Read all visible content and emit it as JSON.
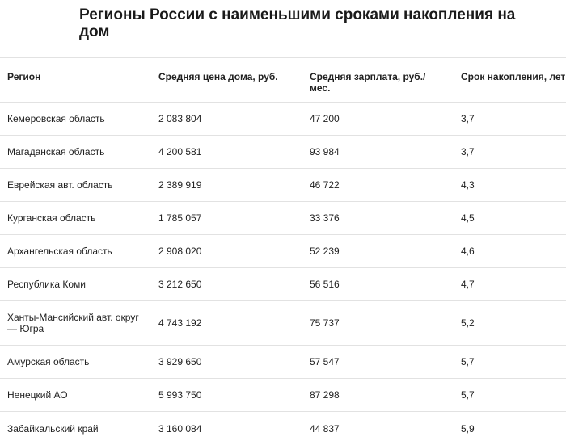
{
  "title": "Регионы России с наименьшими сроками накопления на дом",
  "table": {
    "headers": [
      "Регион",
      "Средняя цена дома, руб.",
      "Средняя зарплата, руб./ мес.",
      "Срок накопления, лет"
    ],
    "rows": [
      {
        "region": "Кемеровская область",
        "price": "2 083 804",
        "salary": "47 200",
        "years": "3,7"
      },
      {
        "region": "Магаданская область",
        "price": "4 200 581",
        "salary": "93 984",
        "years": "3,7"
      },
      {
        "region": "Еврейская авт. область",
        "price": "2 389 919",
        "salary": "46 722",
        "years": "4,3"
      },
      {
        "region": "Курганская область",
        "price": "1 785 057",
        "salary": "33 376",
        "years": "4,5"
      },
      {
        "region": "Архангельская область",
        "price": "2 908 020",
        "salary": "52 239",
        "years": "4,6"
      },
      {
        "region": "Республика Коми",
        "price": "3 212 650",
        "salary": "56 516",
        "years": "4,7"
      },
      {
        "region": "Ханты-Мансийский авт. округ — Югра",
        "price": "4 743 192",
        "salary": "75 737",
        "years": "5,2"
      },
      {
        "region": "Амурская область",
        "price": "3 929 650",
        "salary": "57 547",
        "years": "5,7"
      },
      {
        "region": "Ненецкий АО",
        "price": "5 993 750",
        "salary": "87 298",
        "years": "5,7"
      },
      {
        "region": "Забайкальский край",
        "price": "3 160 084",
        "salary": "44 837",
        "years": "5,9"
      }
    ]
  }
}
